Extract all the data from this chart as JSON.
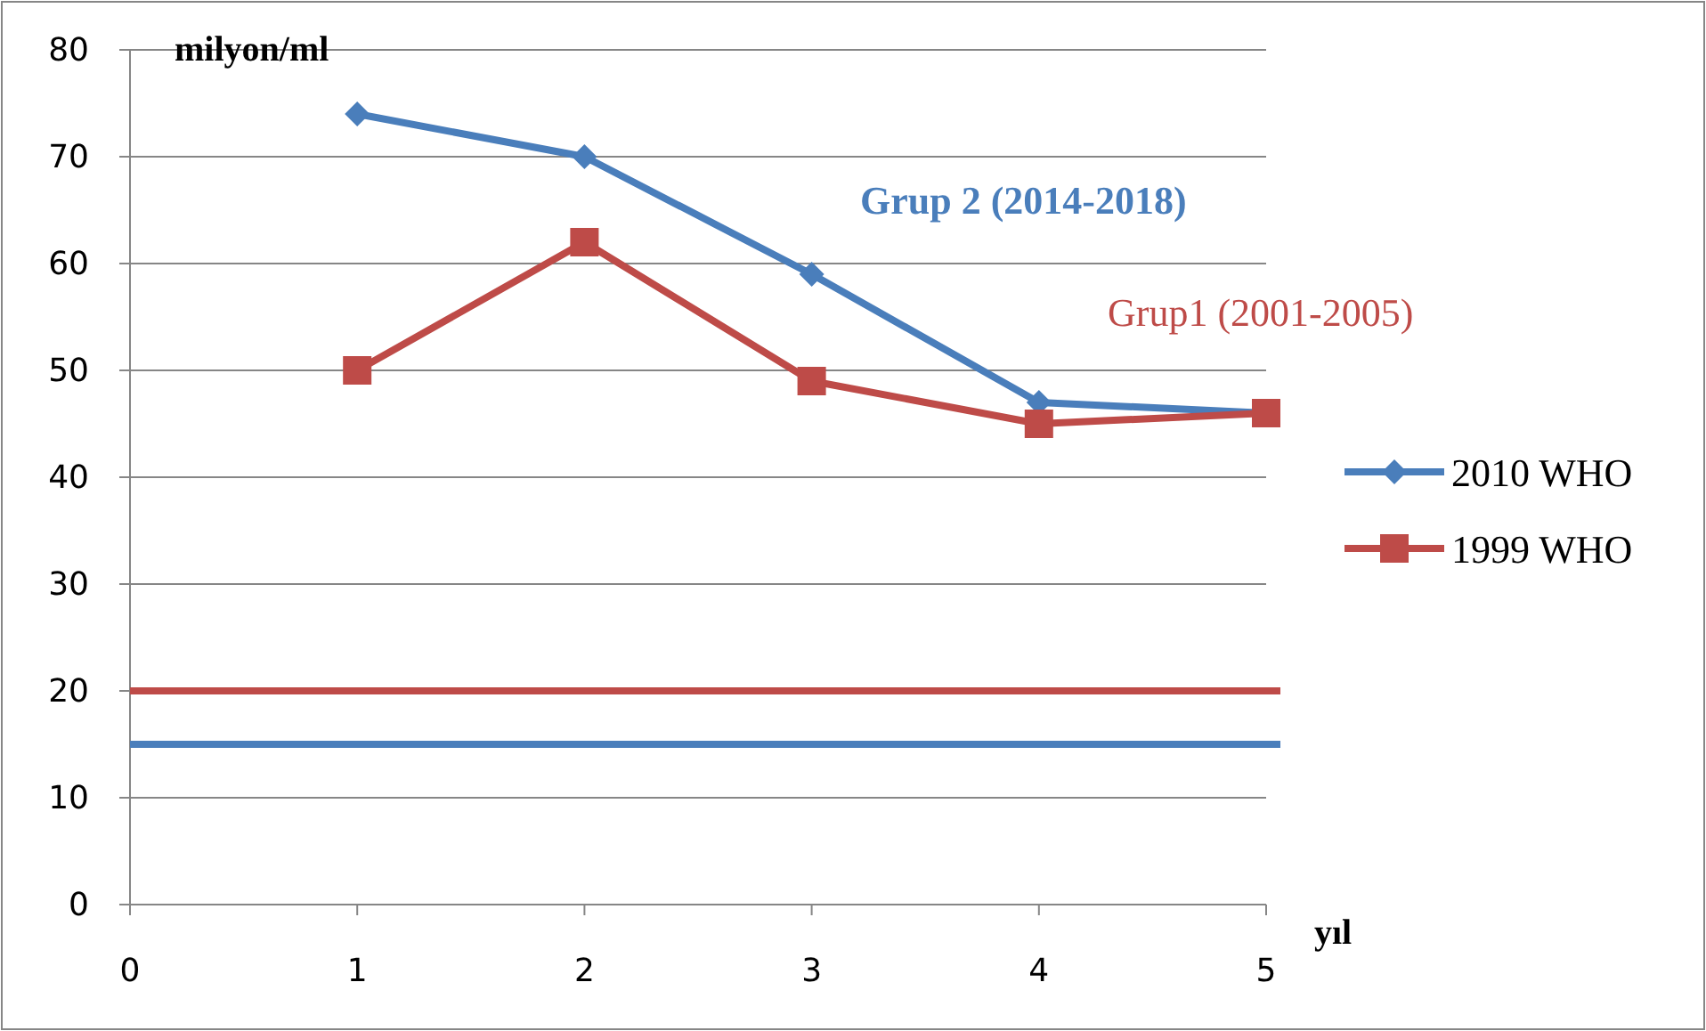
{
  "chart_data": {
    "type": "line",
    "xlabel": "yıl",
    "ylabel": "milyon/ml",
    "x": [
      1,
      2,
      3,
      4,
      5
    ],
    "series": [
      {
        "name": "2010 WHO",
        "color": "#4a7ebb",
        "values": [
          74,
          70,
          59,
          47,
          46
        ],
        "marker": "diamond"
      },
      {
        "name": "1999 WHO",
        "color": "#be4b48",
        "values": [
          50,
          62,
          49,
          45,
          46
        ],
        "marker": "square"
      }
    ],
    "ref_lines": [
      {
        "axis": "y",
        "value": 20,
        "color": "#be4b48"
      },
      {
        "axis": "y",
        "value": 15,
        "color": "#4a7ebb"
      }
    ],
    "annotations": [
      "Grup 2 (2014-2018)",
      "Grup1 (2001-2005)"
    ],
    "xlim": [
      0,
      5
    ],
    "xticks": [
      0,
      1,
      2,
      3,
      4,
      5
    ],
    "ylim": [
      0,
      80
    ],
    "yticks": [
      0,
      10,
      20,
      30,
      40,
      50,
      60,
      70,
      80
    ],
    "grid": "y",
    "legend": "right",
    "line_style": "solid"
  }
}
